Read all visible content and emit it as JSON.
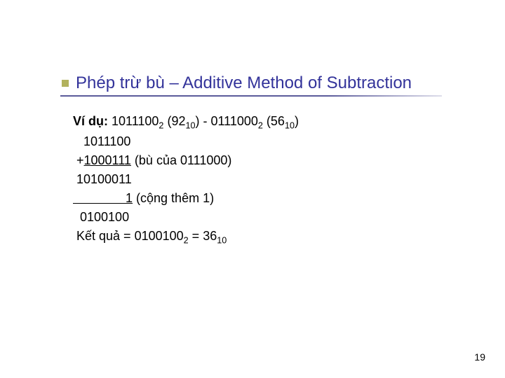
{
  "title": "Phép trừ bù – Additive Method of Subtraction",
  "colors": {
    "title_color": "#33339a",
    "bullet_color": "#b2b25e",
    "text_color": "#000000",
    "background": "#ffffff"
  },
  "example": {
    "label": "Ví dụ:",
    "expr_a": "1011100",
    "expr_a_sub": "2",
    "expr_a_dec": "92",
    "expr_a_dec_sub": "10",
    "expr_b": "0111000",
    "expr_b_sub": "2",
    "expr_b_dec": "56",
    "expr_b_dec_sub": "10",
    "line2": "   1011100",
    "line3_prefix": " +",
    "line3_val": "1000111",
    "line3_note": " (bù của 0111000)",
    "line4": " 10100011",
    "line5_spaces": "               ",
    "line5_val": "1",
    "line5_note": " (cộng thêm 1)",
    "line6": "  0100100",
    "result_label": " Kết quả = ",
    "result_bin": "0100100",
    "result_bin_sub": "2",
    "result_eq": " = ",
    "result_dec": "36",
    "result_dec_sub": "10"
  },
  "page_number": "19"
}
